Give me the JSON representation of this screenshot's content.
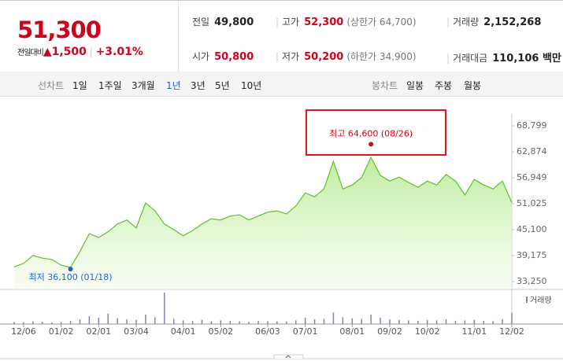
{
  "header": {
    "price": "51,300",
    "change_label": "전일대비",
    "change": "▲1,500",
    "change_pct": "+3.01%",
    "stats": [
      {
        "label": "전일",
        "value": "49,800"
      },
      {
        "label": "고가",
        "value": "52,300",
        "note": "(상한가 64,700)"
      },
      {
        "label": "거래량",
        "value": "2,152,268"
      },
      {
        "label": "시가",
        "value": "50,800"
      },
      {
        "label": "저가",
        "value": "50,200",
        "note": "(하한가 34,900)"
      },
      {
        "label": "거래대금",
        "value": "110,106 백만"
      }
    ]
  },
  "tabs": {
    "line_label": "선차트",
    "periods": [
      "1일",
      "1주일",
      "3개월",
      "1년",
      "3년",
      "5년",
      "10년"
    ],
    "selected": "1년",
    "candle_label": "봉차트",
    "candles": [
      "일봉",
      "주봉",
      "월봉"
    ]
  },
  "chart_data": {
    "type": "line",
    "categories": [
      null,
      "12/06",
      null,
      null,
      null,
      "01/02",
      null,
      null,
      null,
      "02/01",
      null,
      null,
      null,
      "03/04",
      null,
      null,
      null,
      null,
      "04/01",
      null,
      null,
      null,
      "05/02",
      null,
      null,
      null,
      null,
      "06/03",
      null,
      null,
      null,
      "07/01",
      null,
      null,
      null,
      null,
      "08/01",
      null,
      null,
      null,
      "09/02",
      null,
      null,
      null,
      "10/02",
      null,
      null,
      null,
      null,
      "11/01",
      null,
      null,
      null,
      "12/02"
    ],
    "series": [
      {
        "color": "#5dbf2b",
        "values": [
          36600,
          37400,
          39200,
          38600,
          38300,
          37000,
          36500,
          40100,
          44200,
          43300,
          44600,
          46400,
          47300,
          45500,
          51200,
          49400,
          46400,
          45100,
          43700,
          44900,
          46400,
          47600,
          47300,
          48200,
          48500,
          47300,
          48200,
          49100,
          49400,
          48700,
          50500,
          53500,
          52600,
          54400,
          60700,
          54400,
          55300,
          57000,
          61600,
          57500,
          56200,
          57100,
          55900,
          54800,
          56200,
          55300,
          57700,
          56200,
          53000,
          56600,
          55300,
          54400,
          56200,
          51300
        ]
      },
      {
        "name": "거래량",
        "color": "#8a7fb8",
        "values": [
          400000,
          350000,
          500000,
          450000,
          300000,
          380000,
          600000,
          900000,
          1500000,
          1200000,
          2000000,
          1100000,
          900000,
          800000,
          1800000,
          1300000,
          6000000,
          1000000,
          700000,
          600000,
          800000,
          500000,
          700000,
          600000,
          500000,
          450000,
          600000,
          550000,
          500000,
          480000,
          700000,
          1200000,
          900000,
          1000000,
          2200000,
          1300000,
          1100000,
          1000000,
          1800000,
          1200000,
          900000,
          800000,
          700000,
          600000,
          800000,
          700000,
          900000,
          600000,
          700000,
          800000,
          600000,
          550000,
          900000,
          2152268
        ]
      }
    ],
    "ylim": [
      31450,
      71500
    ],
    "yticks": [
      {
        "value": 33250,
        "label": "33,250"
      },
      {
        "value": 39175,
        "label": "39,175"
      },
      {
        "value": 45100,
        "label": "45,100"
      },
      {
        "value": 51025,
        "label": "51,025"
      },
      {
        "value": 56949,
        "label": "56,949"
      },
      {
        "value": 62874,
        "label": "62,874"
      },
      {
        "value": 68799,
        "label": "68,799"
      }
    ],
    "annotations": {
      "high": {
        "text": "최고 64,600 (08/26)",
        "value": 64600,
        "color": "#d0021b"
      },
      "low": {
        "text": "최저 36,100 (01/18)",
        "value": 36100,
        "color": "#1a66cc"
      }
    }
  }
}
